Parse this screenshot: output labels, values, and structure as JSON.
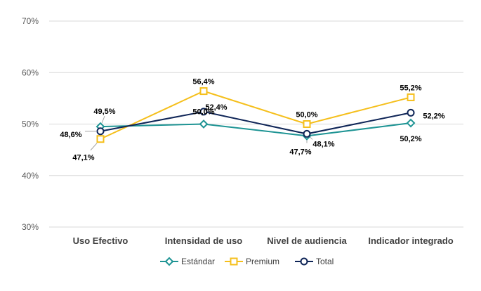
{
  "chart_data": {
    "type": "line",
    "title": "",
    "xlabel": "",
    "ylabel": "",
    "categories": [
      "Uso Efectivo",
      "Intensidad de uso",
      "Nivel de audiencia",
      "Indicador integrado"
    ],
    "ylim": [
      30,
      70
    ],
    "yticks": [
      30,
      40,
      50,
      60,
      70
    ],
    "ytick_labels": [
      "30%",
      "40%",
      "50%",
      "60%",
      "70%"
    ],
    "grid": true,
    "legend_position": "bottom",
    "series": [
      {
        "name": "Estándar",
        "color": "#1e9494",
        "marker": "diamond",
        "values": [
          49.5,
          50.0,
          47.7,
          50.2
        ],
        "labels": [
          "49,5%",
          "50,0%",
          "47,7%",
          "50,2%"
        ]
      },
      {
        "name": "Premium",
        "color": "#f5bf1b",
        "marker": "square",
        "values": [
          47.1,
          56.4,
          50.0,
          55.2
        ],
        "labels": [
          "47,1%",
          "56,4%",
          "50,0%",
          "55,2%"
        ]
      },
      {
        "name": "Total",
        "color": "#0f2557",
        "marker": "circle",
        "values": [
          48.6,
          52.4,
          48.1,
          52.2
        ],
        "labels": [
          "48,6%",
          "52,4%",
          "48,1%",
          "52,2%"
        ]
      }
    ]
  }
}
